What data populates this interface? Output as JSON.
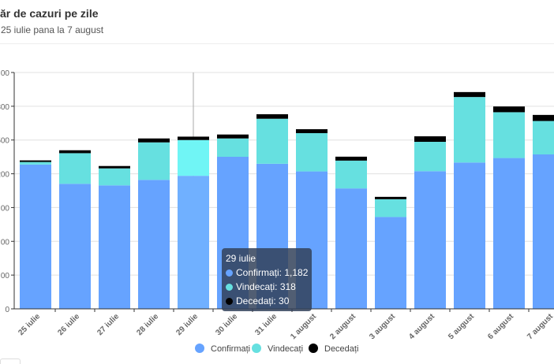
{
  "header": {
    "title": "ăr de cazuri pe zile",
    "subtitle": "25 iulie pana la 7 august"
  },
  "tooltip": {
    "title": "29 iulie",
    "rows": [
      {
        "label": "Confirmați: 1,182",
        "color": "#66a3ff"
      },
      {
        "label": "Vindecați: 318",
        "color": "#66e0e0"
      },
      {
        "label": "Decedați: 30",
        "color": "#000000"
      }
    ]
  },
  "chart_data": {
    "type": "bar",
    "stacked": true,
    "title": "ăr de cazuri pe zile",
    "subtitle": "25 iulie pana la 7 august",
    "xlabel": "",
    "ylabel": "",
    "ylim": [
      0,
      2100
    ],
    "yticks": [
      0,
      300,
      600,
      900,
      1200,
      1500,
      1800,
      2100
    ],
    "ytick_labels": [
      "0",
      "00",
      "00",
      "00",
      "200",
      "500",
      "800",
      "00"
    ],
    "grid": true,
    "legend_position": "bottom",
    "highlighted_category": "29 iulie",
    "categories": [
      "25 iulie",
      "26 iulie",
      "27 iulie",
      "28 iulie",
      "29 iulie",
      "30 iulie",
      "31 iulie",
      "1 august",
      "2 august",
      "3 august",
      "4 august",
      "5 august",
      "6 august",
      "7 august"
    ],
    "series": [
      {
        "name": "Confirmați",
        "color": "#66a3ff",
        "highlight_color": "#70b0ff",
        "values": [
          1282,
          1111,
          1097,
          1146,
          1182,
          1351,
          1289,
          1221,
          1070,
          816,
          1223,
          1300,
          1340,
          1372
        ]
      },
      {
        "name": "Vindecați",
        "color": "#66e0e0",
        "highlight_color": "#70f5f5",
        "values": [
          23,
          272,
          151,
          333,
          318,
          163,
          400,
          340,
          247,
          158,
          261,
          582,
          407,
          297
        ]
      },
      {
        "name": "Decedați",
        "color": "#000000",
        "highlight_color": "#000000",
        "values": [
          14,
          26,
          21,
          35,
          30,
          35,
          40,
          35,
          35,
          21,
          49,
          44,
          51,
          54
        ]
      }
    ]
  }
}
